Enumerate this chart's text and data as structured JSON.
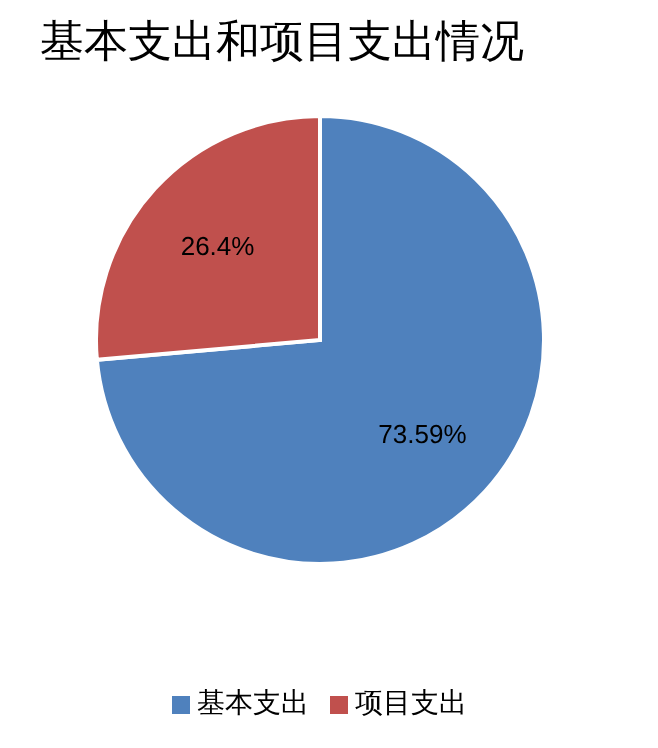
{
  "chart_data": {
    "type": "pie",
    "title": "基本支出和项目支出情况",
    "categories": [
      "基本支出",
      "项目支出"
    ],
    "values": [
      73.59,
      26.4
    ],
    "value_labels": [
      "73.59%",
      "26.4%"
    ],
    "colors": [
      "#4f81bd",
      "#c0504d"
    ],
    "legend": "bottom"
  }
}
